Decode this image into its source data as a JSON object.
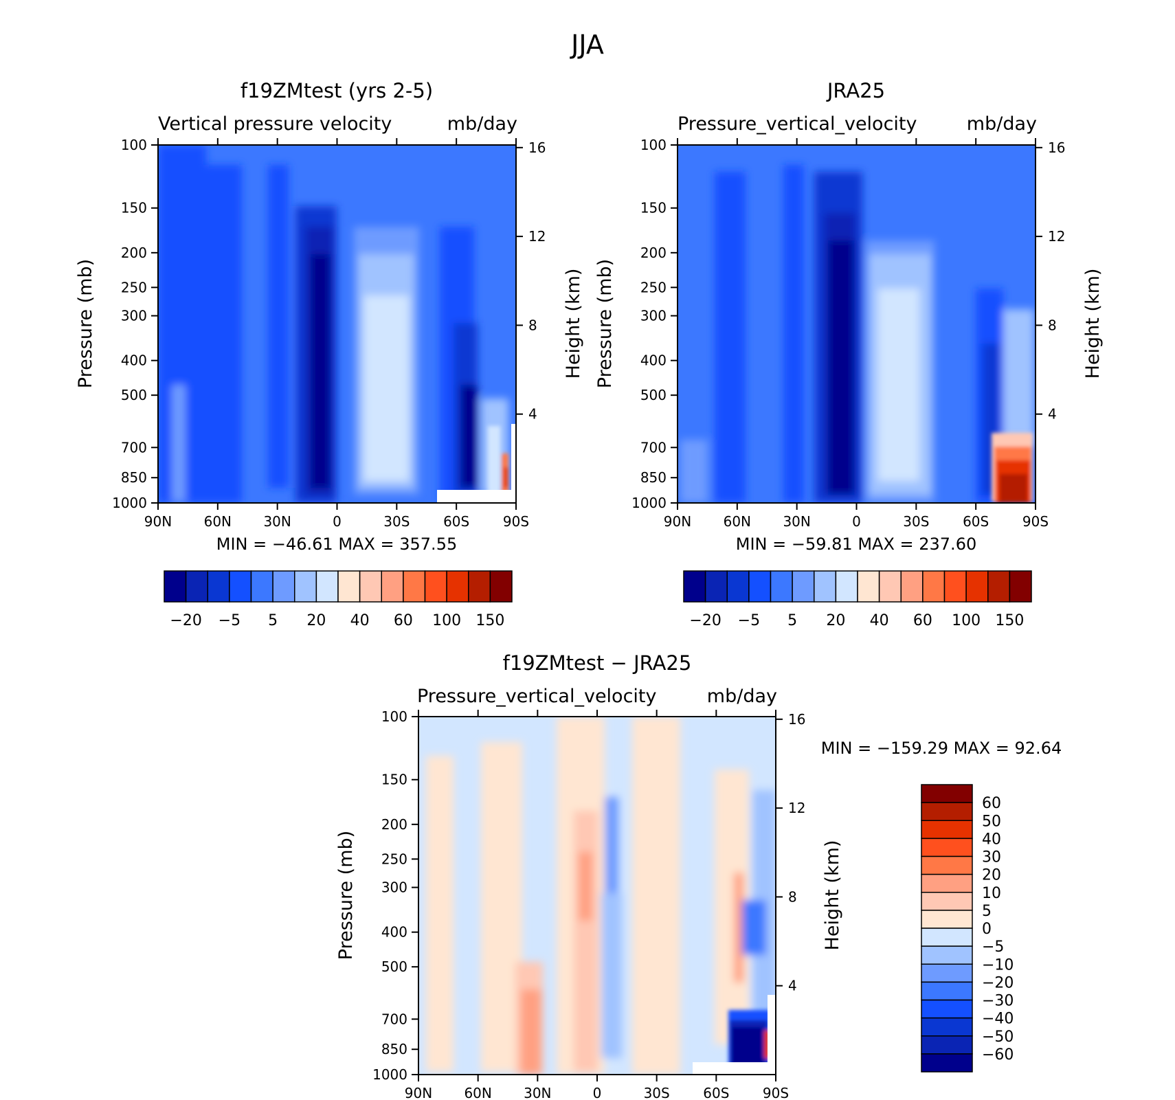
{
  "figure": {
    "title": "JJA"
  },
  "colors": {
    "full_field": [
      "#00008c",
      "#0a24b4",
      "#0a37d2",
      "#1450ff",
      "#3c78ff",
      "#6e9bff",
      "#a0c3ff",
      "#d2e6ff",
      "#ffe6d2",
      "#ffc8b4",
      "#ffa082",
      "#ff7846",
      "#ff501e",
      "#e63200",
      "#b41e00",
      "#820000"
    ],
    "difference": [
      "#00008c",
      "#0a24b4",
      "#0a37d2",
      "#1450ff",
      "#3c78ff",
      "#6e9bff",
      "#a0c3ff",
      "#d2e6ff",
      "#ffe6d2",
      "#ffc8b4",
      "#ffa082",
      "#ff7846",
      "#ff501e",
      "#e63200",
      "#b41e00",
      "#820000"
    ]
  },
  "chart_data": [
    {
      "type": "heatmap",
      "panel": "model",
      "title": "f19ZMtest (yrs 2-5)",
      "subtitle_left": "Vertical pressure velocity",
      "subtitle_right": "mb/day",
      "ylabel": "Pressure (mb)",
      "ylabel_right": "Height (km)",
      "x_ticks": [
        "90N",
        "60N",
        "30N",
        "0",
        "30S",
        "60S",
        "90S"
      ],
      "y_ticks": [
        "100",
        "150",
        "200",
        "250",
        "300",
        "400",
        "500",
        "700",
        "850",
        "1000"
      ],
      "y_right_ticks": [
        "16",
        "12",
        "8",
        "4"
      ],
      "stats": "MIN = −46.61   MAX = 357.55",
      "xlim": [
        -90,
        90
      ],
      "ylim": [
        1000,
        100
      ],
      "colorbar_labels": [
        "−20",
        "−5",
        "5",
        "20",
        "40",
        "60",
        "100",
        "150"
      ],
      "colorbar_levels": [
        "-30",
        "-20",
        "-10",
        "-5",
        "0",
        "5",
        "10",
        "20",
        "30",
        "40",
        "50",
        "60",
        "80",
        "100",
        "150"
      ]
    },
    {
      "type": "heatmap",
      "panel": "obs",
      "title": "JRA25",
      "subtitle_left": "Pressure_vertical_velocity",
      "subtitle_right": "mb/day",
      "ylabel": "Pressure (mb)",
      "ylabel_right": "Height (km)",
      "x_ticks": [
        "90N",
        "60N",
        "30N",
        "0",
        "30S",
        "60S",
        "90S"
      ],
      "y_ticks": [
        "100",
        "150",
        "200",
        "250",
        "300",
        "400",
        "500",
        "700",
        "850",
        "1000"
      ],
      "y_right_ticks": [
        "16",
        "12",
        "8",
        "4"
      ],
      "stats": "MIN = −59.81   MAX = 237.60",
      "xlim": [
        -90,
        90
      ],
      "ylim": [
        1000,
        100
      ],
      "colorbar_labels": [
        "−20",
        "−5",
        "5",
        "20",
        "40",
        "60",
        "100",
        "150"
      ],
      "colorbar_levels": [
        "-30",
        "-20",
        "-10",
        "-5",
        "0",
        "5",
        "10",
        "20",
        "30",
        "40",
        "50",
        "60",
        "80",
        "100",
        "150"
      ]
    },
    {
      "type": "heatmap",
      "panel": "difference",
      "title": "f19ZMtest − JRA25",
      "subtitle_left": "Pressure_vertical_velocity",
      "subtitle_right": "mb/day",
      "ylabel": "Pressure (mb)",
      "ylabel_right": "Height (km)",
      "x_ticks": [
        "90N",
        "60N",
        "30N",
        "0",
        "30S",
        "60S",
        "90S"
      ],
      "y_ticks": [
        "100",
        "150",
        "200",
        "250",
        "300",
        "400",
        "500",
        "700",
        "850",
        "1000"
      ],
      "y_right_ticks": [
        "16",
        "12",
        "8",
        "4"
      ],
      "stats": "MIN = −159.29   MAX =   92.64",
      "xlim": [
        -90,
        90
      ],
      "ylim": [
        1000,
        100
      ],
      "colorbar_labels": [
        "60",
        "50",
        "40",
        "30",
        "20",
        "10",
        "5",
        "0",
        "−5",
        "−10",
        "−20",
        "−30",
        "−40",
        "−50",
        "−60"
      ]
    }
  ]
}
